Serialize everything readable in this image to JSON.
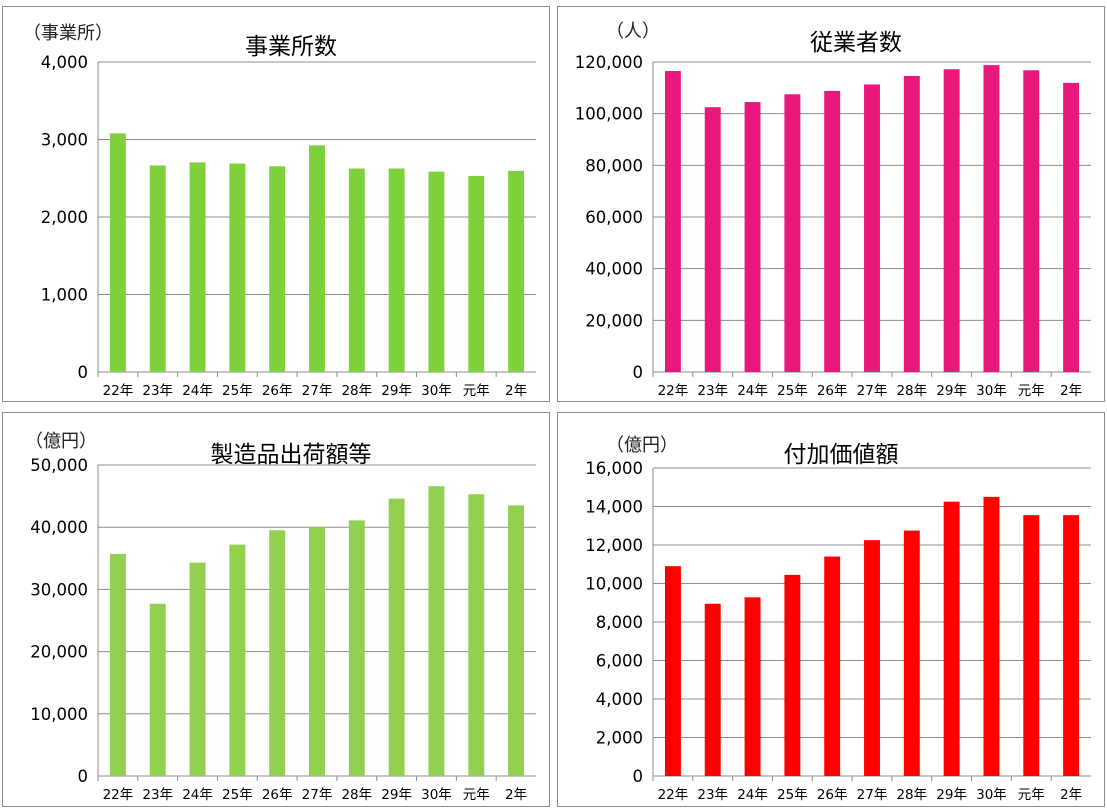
{
  "chart_data": [
    {
      "type": "bar",
      "title": "事業所数",
      "ylabel": "（事業所）",
      "categories": [
        "22年",
        "23年",
        "24年",
        "25年",
        "26年",
        "27年",
        "28年",
        "29年",
        "30年",
        "元年",
        "2年"
      ],
      "values": [
        3080,
        2665,
        2705,
        2690,
        2655,
        2925,
        2625,
        2625,
        2585,
        2530,
        2595
      ],
      "ylim": [
        0,
        4000
      ],
      "yticks": [
        0,
        1000,
        2000,
        3000,
        4000
      ],
      "ytick_labels": [
        "0",
        "1,000",
        "2,000",
        "3,000",
        "4,000"
      ],
      "grid": true,
      "color": "#7fd13b"
    },
    {
      "type": "bar",
      "title": "従業者数",
      "ylabel": "（人）",
      "categories": [
        "22年",
        "23年",
        "24年",
        "25年",
        "26年",
        "27年",
        "28年",
        "29年",
        "30年",
        "元年",
        "2年"
      ],
      "values": [
        116500,
        102500,
        104500,
        107500,
        108800,
        111300,
        114600,
        117200,
        118800,
        116800,
        111900
      ],
      "ylim": [
        0,
        120000
      ],
      "yticks": [
        0,
        20000,
        40000,
        60000,
        80000,
        100000,
        120000
      ],
      "ytick_labels": [
        "0",
        "20,000",
        "40,000",
        "60,000",
        "80,000",
        "100,000",
        "120,000"
      ],
      "grid": true,
      "color": "#e8197a"
    },
    {
      "type": "bar",
      "title": "製造品出荷額等",
      "ylabel": "（億円）",
      "categories": [
        "22年",
        "23年",
        "24年",
        "25年",
        "26年",
        "27年",
        "28年",
        "29年",
        "30年",
        "元年",
        "2年"
      ],
      "values": [
        35700,
        27700,
        34300,
        37200,
        39500,
        40000,
        41100,
        44600,
        46600,
        45300,
        43500
      ],
      "ylim": [
        0,
        50000
      ],
      "yticks": [
        0,
        10000,
        20000,
        30000,
        40000,
        50000
      ],
      "ytick_labels": [
        "0",
        "10,000",
        "20,000",
        "30,000",
        "40,000",
        "50,000"
      ],
      "grid": true,
      "color": "#92d050"
    },
    {
      "type": "bar",
      "title": "付加価値額",
      "ylabel": "（億円）",
      "categories": [
        "22年",
        "23年",
        "24年",
        "25年",
        "26年",
        "27年",
        "28年",
        "29年",
        "30年",
        "元年",
        "2年"
      ],
      "values": [
        10900,
        8950,
        9280,
        10450,
        11400,
        12250,
        12750,
        14250,
        14500,
        13550,
        13550
      ],
      "ylim": [
        0,
        16000
      ],
      "yticks": [
        0,
        2000,
        4000,
        6000,
        8000,
        10000,
        12000,
        14000,
        16000
      ],
      "ytick_labels": [
        "0",
        "2,000",
        "4,000",
        "6,000",
        "8,000",
        "10,000",
        "12,000",
        "14,000",
        "16,000"
      ],
      "grid": true,
      "color": "#ff0000"
    }
  ]
}
